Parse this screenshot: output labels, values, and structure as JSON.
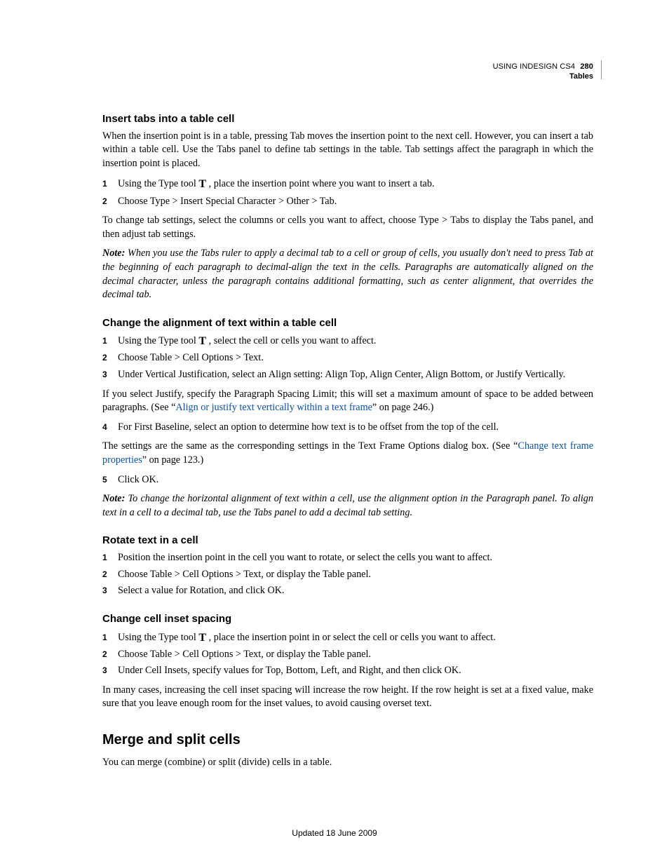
{
  "header": {
    "product": "USING INDESIGN CS4",
    "section": "Tables",
    "page_number": "280"
  },
  "section1": {
    "heading": "Insert tabs into a table cell",
    "intro": "When the insertion point is in a table, pressing Tab moves the insertion point to the next cell. However, you can insert a tab within a table cell. Use the Tabs panel to define tab settings in the table. Tab settings affect the paragraph in which the insertion point is placed.",
    "step1_prefix": "Using the Type tool ",
    "step1_suffix": " , place the insertion point where you want to insert a tab.",
    "step2": "Choose Type > Insert Special Character > Other > Tab.",
    "para2": "To change tab settings, select the columns or cells you want to affect, choose Type > Tabs to display the Tabs panel, and then adjust tab settings.",
    "note_label": "Note:",
    "note_body": " When you use the Tabs ruler to apply a decimal tab to a cell or group of cells, you usually don't need to press Tab at the beginning of each paragraph to decimal-align the text in the cells. Paragraphs are automatically aligned on the decimal character, unless the paragraph contains additional formatting, such as center alignment, that overrides the decimal tab."
  },
  "section2": {
    "heading": "Change the alignment of text within a table cell",
    "step1_prefix": "Using the Type tool ",
    "step1_suffix": " , select the cell or cells you want to affect.",
    "step2": "Choose Table > Cell Options > Text.",
    "step3": "Under Vertical Justification, select an Align setting: Align Top, Align Center, Align Bottom, or Justify Vertically.",
    "para2_pre": "If you select Justify, specify the Paragraph Spacing Limit; this will set a maximum amount of space to be added between paragraphs. (See “",
    "link1_text": "Align or justify text vertically within a text frame",
    "para2_post": "” on page 246.)",
    "step4": "For First Baseline, select an option to determine how text is to be offset from the top of the cell.",
    "para3_pre": "The settings are the same as the corresponding settings in the Text Frame Options dialog box. (See “",
    "link2_text": "Change text frame properties",
    "para3_post": "” on page 123.)",
    "step5": "Click OK.",
    "note_label": "Note:",
    "note_body": " To change the horizontal alignment of text within a cell, use the alignment option in the Paragraph panel. To align text in a cell to a decimal tab, use the Tabs panel to add a decimal tab setting."
  },
  "section3": {
    "heading": "Rotate text in a cell",
    "step1": "Position the insertion point in the cell you want to rotate, or select the cells you want to affect.",
    "step2": "Choose Table > Cell Options > Text, or display the Table panel.",
    "step3": "Select a value for Rotation, and click OK."
  },
  "section4": {
    "heading": "Change cell inset spacing",
    "step1_prefix": "Using the Type tool ",
    "step1_suffix": " , place the insertion point in or select the cell or cells you want to affect.",
    "step2": "Choose Table > Cell Options > Text, or display the Table panel.",
    "step3": "Under Cell Insets, specify values for Top, Bottom, Left, and Right, and then click OK.",
    "para2": "In many cases, increasing the cell inset spacing will increase the row height. If the row height is set at a fixed value, make sure that you leave enough room for the inset values, to avoid causing overset text."
  },
  "section5": {
    "heading": "Merge and split cells",
    "para": "You can merge (combine) or split (divide) cells in a table."
  },
  "footer": "Updated 18 June 2009",
  "type_tool_glyph": "T",
  "nums": {
    "n1": "1",
    "n2": "2",
    "n3": "3",
    "n4": "4",
    "n5": "5"
  }
}
